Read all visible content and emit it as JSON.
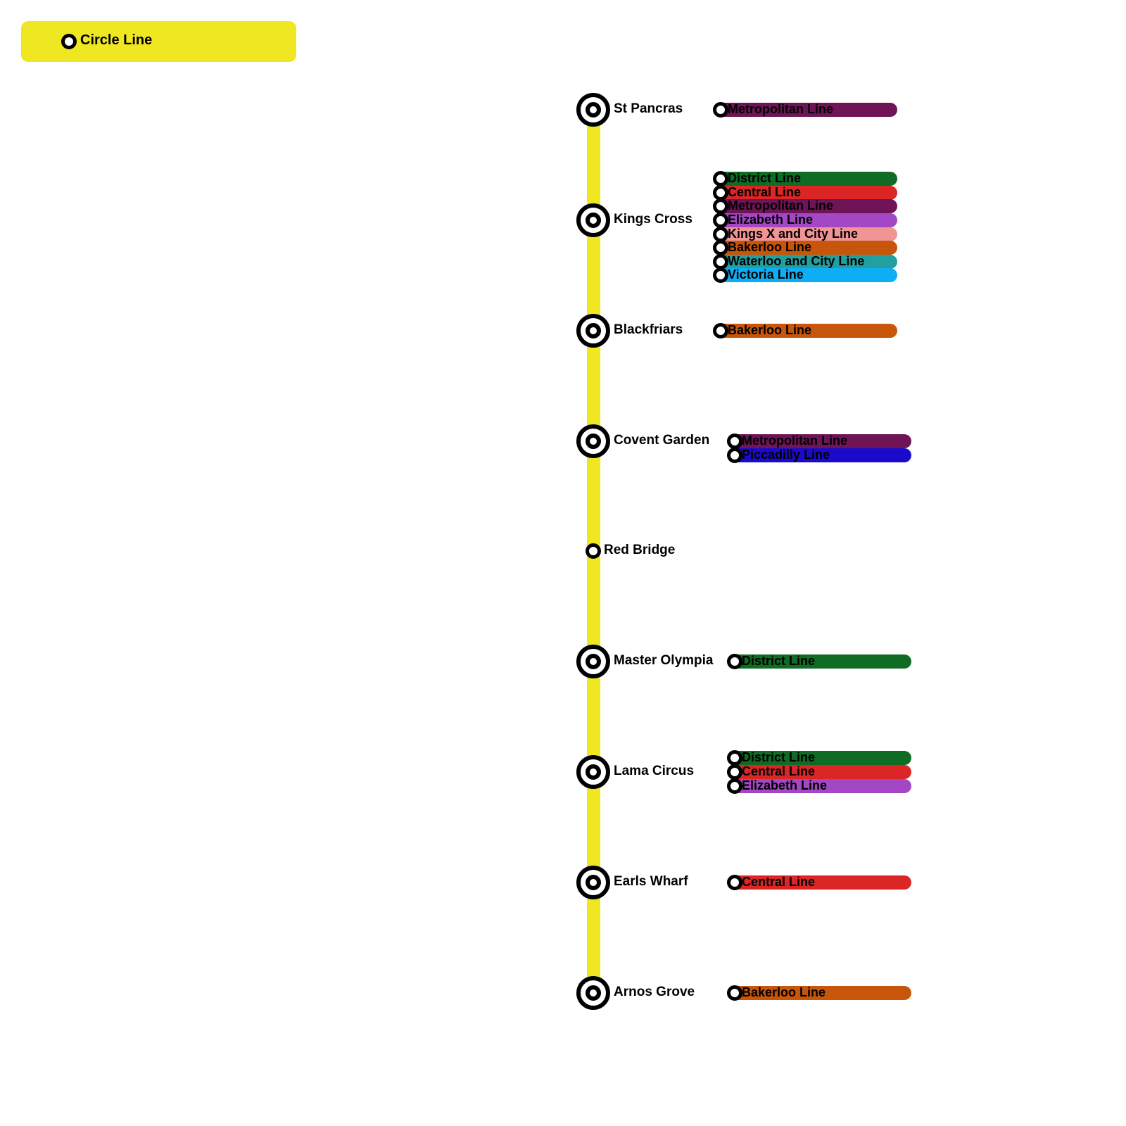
{
  "header": {
    "line_name": "Circle Line",
    "color": "#f0e723"
  },
  "colors": {
    "Metropolitan Line": "#6e1457",
    "District Line": "#106b24",
    "Central Line": "#dc2626",
    "Elizabeth Line": "#a347c4",
    "Kings X and City Line": "#f09494",
    "Bakerloo Line": "#c8560a",
    "Waterloo and City Line": "#22a0a0",
    "Victoria Line": "#0eaef5",
    "Piccadilly Line": "#1a0acc"
  },
  "stations": [
    {
      "name": "St Pancras",
      "interchange": true,
      "lines": [
        "Metropolitan Line"
      ]
    },
    {
      "name": "Kings Cross",
      "interchange": true,
      "lines": [
        "District Line",
        "Central Line",
        "Metropolitan Line",
        "Elizabeth Line",
        "Kings X and City Line",
        "Bakerloo Line",
        "Waterloo and City Line",
        "Victoria Line"
      ]
    },
    {
      "name": "Blackfriars",
      "interchange": true,
      "lines": [
        "Bakerloo Line"
      ]
    },
    {
      "name": "Covent Garden",
      "interchange": true,
      "lines": [
        "Metropolitan Line",
        "Piccadilly Line"
      ]
    },
    {
      "name": "Red Bridge",
      "interchange": false,
      "lines": []
    },
    {
      "name": "Master Olympia",
      "interchange": true,
      "lines": [
        "District Line"
      ]
    },
    {
      "name": "Lama Circus",
      "interchange": true,
      "lines": [
        "District Line",
        "Central Line",
        "Elizabeth Line"
      ]
    },
    {
      "name": "Earls Wharf",
      "interchange": true,
      "lines": [
        "Central Line"
      ]
    },
    {
      "name": "Arnos Grove",
      "interchange": true,
      "lines": [
        "Bakerloo Line"
      ]
    }
  ]
}
